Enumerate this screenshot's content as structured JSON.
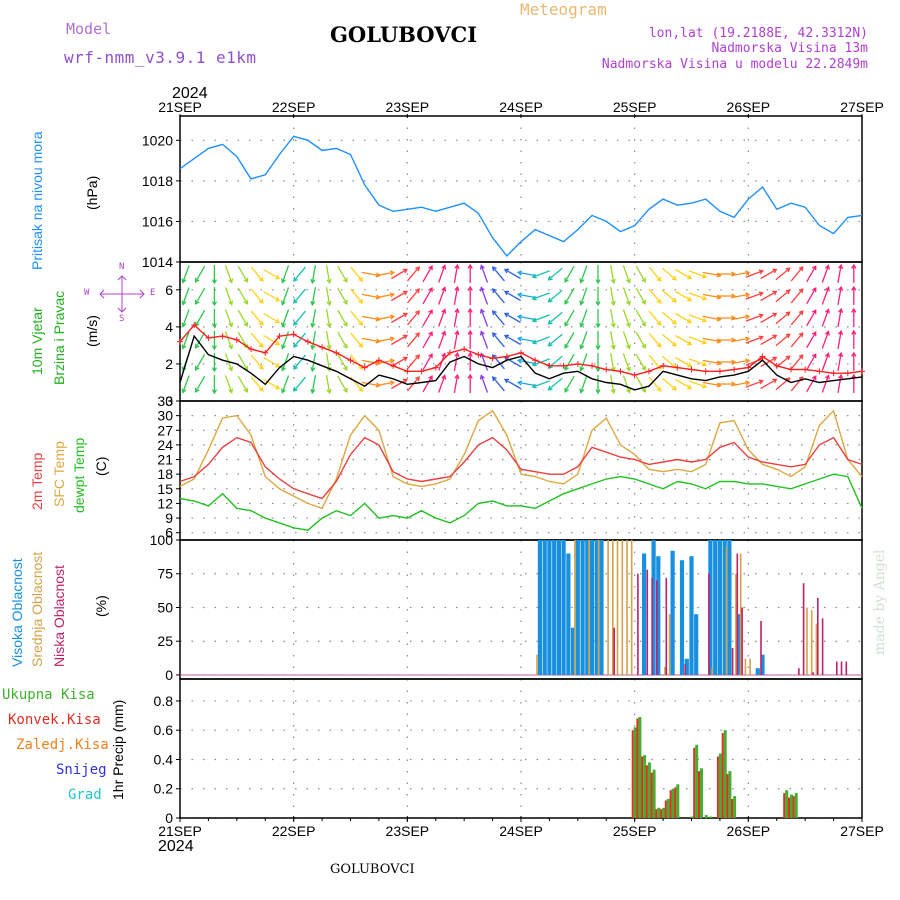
{
  "header": {
    "model_label": "Model",
    "model_name": "wrf-nmm_v3.9.1 e1km",
    "station": "GOLUBOVCI",
    "product": "Meteogram",
    "lonlat": "lon,lat (19.2188E, 42.3312N)",
    "elevation": "Nadmorska Visina 13m",
    "model_elevation": "Nadmorska Visina u modelu 22.2849m",
    "footer_station": "GOLUBOVCI",
    "watermark": "made by Angel",
    "year": "2024"
  },
  "colors": {
    "pressure": "#1e90ff",
    "wind_speed": "#000000",
    "wind_gust": "#ff2020",
    "temp_2m": "#e84040",
    "sfc_temp": "#dda840",
    "dewpt": "#22c022",
    "cloud_high": "#1890e0",
    "cloud_mid": "#d4a24a",
    "cloud_low": "#c0206a",
    "precip_total": "#40b030",
    "precip_conv": "#e03020",
    "precip_frozen": "#f08020",
    "snow": "#3030e0",
    "hail": "#20c8c8",
    "model_label": "#b070d0",
    "product_label": "#e8b870",
    "info_label": "#b040d0"
  },
  "time_axis": {
    "date_labels": [
      "21SEP",
      "22SEP",
      "23SEP",
      "24SEP",
      "25SEP",
      "26SEP",
      "27SEP"
    ],
    "start": "2024-09-21 00:00",
    "end": "2024-09-27 00:00",
    "step_hours": 1
  },
  "panels": {
    "pressure": {
      "title": "Pritisak na nivou mora",
      "unit": "(hPa)"
    },
    "wind": {
      "title1": "10m Vjetar",
      "title2": "Brzina i Pravac",
      "unit": "(m/s)",
      "compass": {
        "north": "N",
        "south": "S",
        "east": "E",
        "west": "W"
      }
    },
    "temp": {
      "label_2m": "2m Temp",
      "label_sfc": "SFC Temp",
      "label_dewpt": "dewpt Temp",
      "unit": "(C)"
    },
    "cloud": {
      "label_high": "Visoka Oblacnost",
      "label_mid": "Srednja Oblacnost",
      "label_low": "Niska Oblacnost",
      "unit": "(%)"
    },
    "precip": {
      "label_total": "Ukupna Kisa",
      "label_conv": "Konvek.Kisa",
      "label_frozen": "Zaledj.Kisa",
      "label_snow": "Snijeg",
      "label_hail": "Grad",
      "unit": "1hr Precip (mm)"
    }
  },
  "chart_data": [
    {
      "type": "line",
      "ylabel": "(hPa)",
      "ylim": [
        1014,
        1021.2
      ],
      "yticks": [
        "1014",
        "1016",
        "1018",
        "1020"
      ],
      "x": [
        0,
        3,
        6,
        9,
        12,
        15,
        18,
        21,
        24,
        27,
        30,
        33,
        36,
        39,
        42,
        45,
        48,
        51,
        54,
        57,
        60,
        63,
        66,
        69,
        72,
        75,
        78,
        81,
        84,
        87,
        90,
        93,
        96,
        99,
        102,
        105,
        108,
        111,
        114,
        117,
        120,
        123,
        126,
        129,
        132,
        135,
        138,
        141,
        144
      ],
      "series": [
        {
          "name": "Pritisak",
          "values": [
            1018.6,
            1019.1,
            1019.6,
            1019.8,
            1019.2,
            1018.1,
            1018.3,
            1019.3,
            1020.2,
            1020.0,
            1019.5,
            1019.6,
            1019.3,
            1017.8,
            1016.8,
            1016.5,
            1016.6,
            1016.7,
            1016.5,
            1016.7,
            1016.9,
            1016.4,
            1015.2,
            1014.3,
            1015.0,
            1015.6,
            1015.3,
            1015.0,
            1015.6,
            1016.3,
            1016.0,
            1015.5,
            1015.8,
            1016.6,
            1017.1,
            1016.8,
            1016.9,
            1017.1,
            1016.5,
            1016.2,
            1017.1,
            1017.7,
            1016.6,
            1016.9,
            1016.7,
            1015.8,
            1015.4,
            1016.2,
            1016.3
          ]
        }
      ]
    },
    {
      "type": "line",
      "ylabel": "(m/s)",
      "ylim": [
        0,
        7.5
      ],
      "yticks": [
        "0",
        "2",
        "4",
        "6"
      ],
      "x": [
        0,
        3,
        6,
        9,
        12,
        15,
        18,
        21,
        24,
        27,
        30,
        33,
        36,
        39,
        42,
        45,
        48,
        51,
        54,
        57,
        60,
        63,
        66,
        69,
        72,
        75,
        78,
        81,
        84,
        87,
        90,
        93,
        96,
        99,
        102,
        105,
        108,
        111,
        114,
        117,
        120,
        123,
        126,
        129,
        132,
        135,
        138,
        141,
        144
      ],
      "series": [
        {
          "name": "Brzina",
          "values": [
            1.0,
            3.5,
            2.5,
            2.2,
            2.0,
            1.5,
            0.9,
            1.8,
            2.4,
            2.2,
            1.9,
            1.6,
            1.2,
            0.8,
            1.4,
            1.2,
            0.9,
            1.0,
            1.1,
            2.1,
            2.4,
            2.0,
            1.8,
            2.2,
            2.4,
            1.5,
            1.2,
            1.5,
            1.6,
            1.2,
            1.0,
            0.9,
            0.6,
            0.8,
            1.6,
            1.4,
            1.2,
            1.1,
            1.3,
            1.4,
            1.6,
            2.2,
            1.4,
            1.0,
            1.2,
            1.0,
            1.1,
            1.2,
            1.3
          ]
        },
        {
          "name": "Udar",
          "values": [
            3.2,
            4.1,
            3.4,
            3.5,
            3.3,
            2.8,
            2.6,
            3.5,
            3.6,
            3.2,
            2.9,
            2.6,
            2.2,
            1.8,
            2.2,
            1.9,
            1.6,
            1.6,
            1.8,
            2.6,
            2.8,
            2.5,
            2.3,
            2.4,
            2.6,
            2.2,
            1.9,
            1.9,
            2.0,
            1.9,
            1.7,
            1.6,
            1.4,
            1.6,
            1.9,
            1.8,
            1.7,
            1.6,
            1.6,
            1.7,
            1.8,
            2.4,
            1.9,
            1.7,
            1.7,
            1.6,
            1.5,
            1.5,
            1.6
          ]
        }
      ],
      "direction_deg": [
        200,
        210,
        180,
        160,
        150,
        140,
        120,
        200,
        220,
        190,
        170,
        150,
        140,
        100,
        80,
        60,
        40,
        30,
        20,
        10,
        0,
        340,
        320,
        300,
        280,
        250,
        230,
        210,
        200,
        180,
        170,
        160,
        150,
        140,
        130,
        120,
        110,
        100,
        90,
        80,
        70,
        60,
        50,
        40,
        30,
        20,
        10,
        0,
        350
      ]
    },
    {
      "type": "line",
      "ylabel": "(C)",
      "ylim": [
        4.5,
        33
      ],
      "yticks": [
        "6",
        "9",
        "12",
        "15",
        "18",
        "21",
        "24",
        "27",
        "30",
        "33"
      ],
      "x": [
        0,
        3,
        6,
        9,
        12,
        15,
        18,
        21,
        24,
        27,
        30,
        33,
        36,
        39,
        42,
        45,
        48,
        51,
        54,
        57,
        60,
        63,
        66,
        69,
        72,
        75,
        78,
        81,
        84,
        87,
        90,
        93,
        96,
        99,
        102,
        105,
        108,
        111,
        114,
        117,
        120,
        123,
        126,
        129,
        132,
        135,
        138,
        141,
        144
      ],
      "series": [
        {
          "name": "2m Temp",
          "values": [
            16.5,
            17.5,
            20.0,
            23.5,
            25.5,
            24.5,
            19.5,
            17.0,
            15.0,
            14.0,
            13.0,
            16.5,
            22.0,
            25.5,
            24.0,
            18.5,
            17.0,
            16.5,
            17.0,
            17.5,
            20.5,
            24.0,
            25.5,
            23.0,
            19.0,
            18.5,
            18.0,
            18.0,
            19.5,
            23.5,
            22.5,
            21.5,
            21.0,
            20.0,
            20.5,
            21.0,
            20.5,
            21.0,
            23.5,
            24.5,
            21.5,
            20.5,
            20.0,
            19.5,
            20.0,
            24.0,
            25.5,
            21.0,
            20.0
          ]
        },
        {
          "name": "SFC Temp",
          "values": [
            15.5,
            17.0,
            23.0,
            29.5,
            30.0,
            26.0,
            17.5,
            15.0,
            13.5,
            12.0,
            11.0,
            17.0,
            26.0,
            30.0,
            27.0,
            17.5,
            16.0,
            15.5,
            16.0,
            17.0,
            22.0,
            29.0,
            31.0,
            26.0,
            18.0,
            17.5,
            16.5,
            16.0,
            18.0,
            27.0,
            29.5,
            24.0,
            22.0,
            19.0,
            18.5,
            19.0,
            18.5,
            20.0,
            28.5,
            29.0,
            23.0,
            20.0,
            19.0,
            17.5,
            19.5,
            28.0,
            31.0,
            21.0,
            17.5
          ]
        },
        {
          "name": "dewpt Temp",
          "values": [
            13.0,
            12.5,
            11.5,
            14.0,
            11.0,
            10.5,
            9.0,
            8.0,
            7.0,
            6.5,
            9.0,
            10.5,
            9.5,
            12.0,
            9.0,
            9.5,
            9.0,
            10.5,
            9.0,
            8.0,
            9.5,
            12.0,
            12.5,
            11.5,
            11.5,
            11.0,
            12.5,
            14.0,
            15.0,
            16.0,
            17.0,
            17.5,
            17.0,
            16.0,
            15.0,
            16.5,
            16.0,
            15.0,
            16.5,
            16.5,
            16.0,
            16.0,
            15.5,
            15.0,
            16.0,
            17.0,
            18.0,
            17.5,
            11.0
          ]
        }
      ]
    },
    {
      "type": "bar",
      "ylabel": "(%)",
      "ylim": [
        -3,
        100
      ],
      "yticks": [
        "0",
        "25",
        "50",
        "75",
        "100"
      ],
      "series": [
        {
          "name": "Visoka",
          "points": [
            [
              76,
              100
            ],
            [
              77,
              100
            ],
            [
              78,
              100
            ],
            [
              79,
              100
            ],
            [
              80,
              100
            ],
            [
              81,
              100
            ],
            [
              82,
              90
            ],
            [
              83,
              35
            ],
            [
              84,
              100
            ],
            [
              85,
              100
            ],
            [
              86,
              100
            ],
            [
              87,
              100
            ],
            [
              88,
              100
            ],
            [
              89,
              100
            ],
            [
              98,
              90
            ],
            [
              100,
              100
            ],
            [
              101,
              88
            ],
            [
              104,
              92
            ],
            [
              106,
              85
            ],
            [
              107,
              12
            ],
            [
              108,
              88
            ],
            [
              109,
              45
            ],
            [
              112,
              100
            ],
            [
              113,
              100
            ],
            [
              114,
              100
            ],
            [
              115,
              100
            ],
            [
              116,
              100
            ],
            [
              118,
              45
            ],
            [
              122,
              5
            ],
            [
              123,
              15
            ]
          ]
        },
        {
          "name": "Srednja",
          "points": [
            [
              75,
              15
            ],
            [
              83,
              100
            ],
            [
              86,
              100
            ],
            [
              88,
              100
            ],
            [
              90,
              100
            ],
            [
              91,
              100
            ],
            [
              92,
              100
            ],
            [
              93,
              100
            ],
            [
              94,
              100
            ],
            [
              95,
              100
            ],
            [
              102,
              6
            ],
            [
              103,
              45
            ],
            [
              112,
              5
            ],
            [
              115,
              95
            ],
            [
              117,
              75
            ],
            [
              118,
              90
            ],
            [
              119,
              12
            ],
            [
              120,
              12
            ],
            [
              132,
              50
            ],
            [
              133,
              48
            ],
            [
              134,
              38
            ]
          ]
        },
        {
          "name": "Niska",
          "points": [
            [
              91,
              35
            ],
            [
              96,
              75
            ],
            [
              98,
              78
            ],
            [
              99,
              72
            ],
            [
              100,
              70
            ],
            [
              102,
              72
            ],
            [
              106,
              8
            ],
            [
              111,
              75
            ],
            [
              116,
              20
            ],
            [
              117,
              90
            ],
            [
              118,
              50
            ],
            [
              122,
              40
            ],
            [
              130,
              5
            ],
            [
              131,
              68
            ],
            [
              133,
              2
            ],
            [
              134,
              57
            ],
            [
              135,
              42
            ],
            [
              138,
              10
            ],
            [
              139,
              10
            ],
            [
              140,
              10
            ]
          ]
        }
      ]
    },
    {
      "type": "bar",
      "ylabel": "1hr Precip (mm)",
      "ylim": [
        0,
        0.95
      ],
      "yticks": [
        "0",
        "0.2",
        "0.4",
        "0.6",
        "0.8"
      ],
      "series": [
        {
          "name": "Ukupna Kisa",
          "points": [
            [
              96,
              0.62
            ],
            [
              97,
              0.69
            ],
            [
              98,
              0.43
            ],
            [
              99,
              0.38
            ],
            [
              100,
              0.33
            ],
            [
              101,
              0.07
            ],
            [
              102,
              0.07
            ],
            [
              103,
              0.13
            ],
            [
              104,
              0.2
            ],
            [
              105,
              0.23
            ],
            [
              108,
              0.01
            ],
            [
              109,
              0.5
            ],
            [
              110,
              0.34
            ],
            [
              111,
              0.02
            ],
            [
              112,
              0.01
            ],
            [
              114,
              0.44
            ],
            [
              115,
              0.6
            ],
            [
              116,
              0.32
            ],
            [
              117,
              0.15
            ],
            [
              128,
              0.19
            ],
            [
              129,
              0.16
            ],
            [
              130,
              0.17
            ]
          ]
        },
        {
          "name": "Konvek.Kisa",
          "points": [
            [
              96,
              0.6
            ],
            [
              97,
              0.68
            ],
            [
              98,
              0.42
            ],
            [
              99,
              0.36
            ],
            [
              100,
              0.31
            ],
            [
              101,
              0.06
            ],
            [
              102,
              0.06
            ],
            [
              103,
              0.12
            ],
            [
              104,
              0.19
            ],
            [
              105,
              0.21
            ],
            [
              109,
              0.48
            ],
            [
              110,
              0.32
            ],
            [
              114,
              0.42
            ],
            [
              115,
              0.58
            ],
            [
              116,
              0.3
            ],
            [
              117,
              0.13
            ],
            [
              128,
              0.17
            ],
            [
              129,
              0.14
            ],
            [
              130,
              0.15
            ]
          ]
        }
      ]
    }
  ]
}
